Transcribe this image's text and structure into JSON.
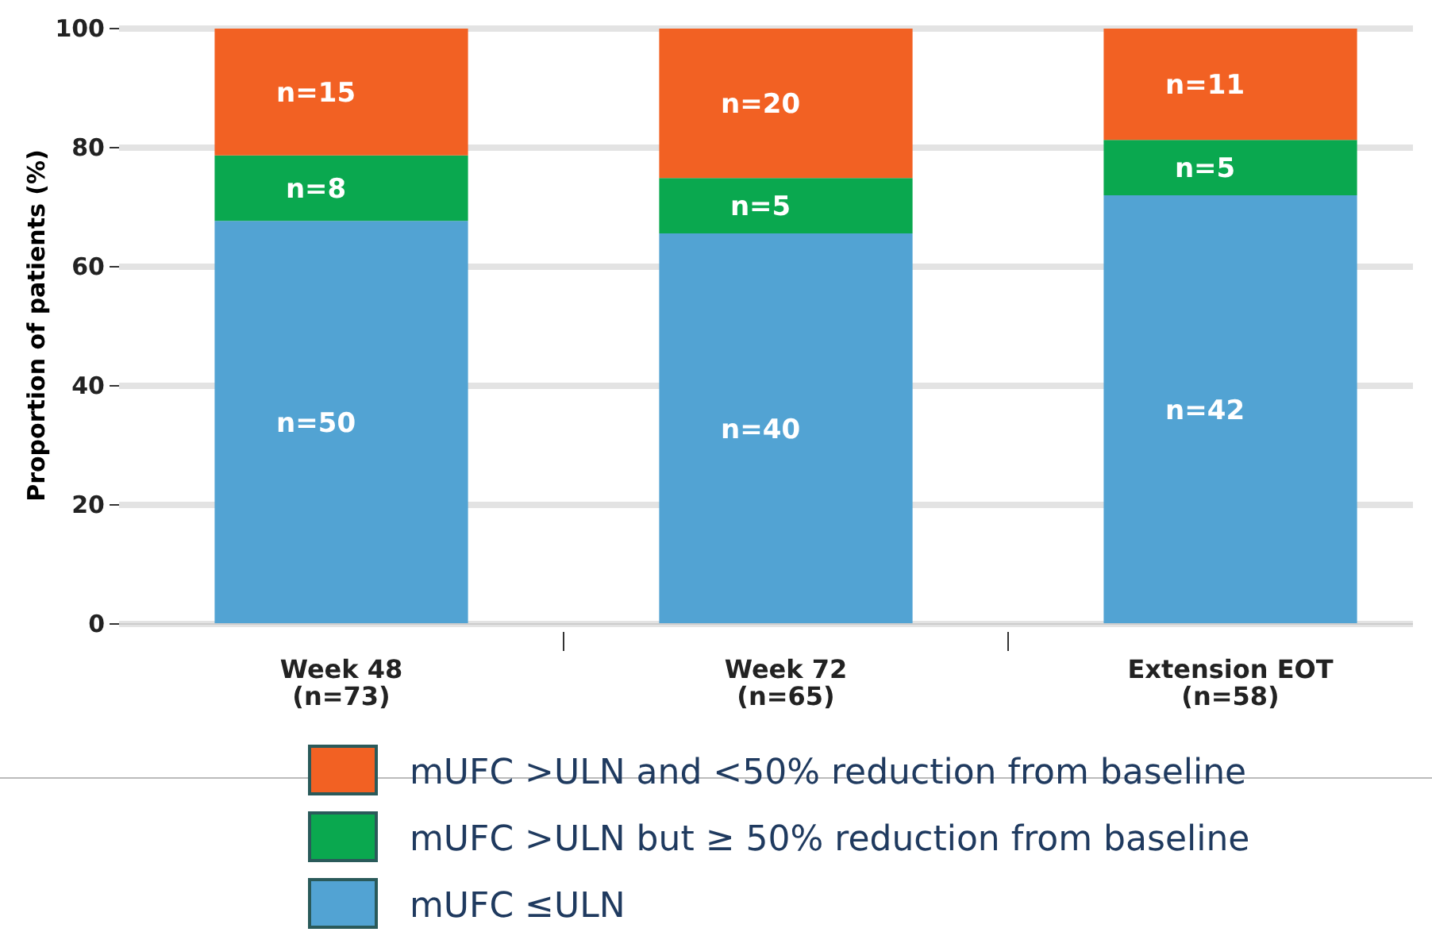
{
  "chart_data": {
    "type": "bar",
    "stacked": true,
    "ylabel": "Proportion of patients (%)",
    "categories": [
      "Week 48\n(n=73)",
      "Week 72\n(n=65)",
      "Extension EOT\n(n=58)"
    ],
    "series": [
      {
        "name": "mUFC ≤ULN",
        "color": "#52a3d3",
        "values": [
          67.7,
          65.6,
          72
        ]
      },
      {
        "name": "mUFC >ULN but ≥ 50% reduction from baseline",
        "color": "#0aa84f",
        "values": [
          11,
          9.3,
          9.3
        ]
      },
      {
        "name": "mUFC >ULN and <50% reduction from baseline",
        "color": "#f26123",
        "values": [
          21.3,
          25.1,
          18.7
        ]
      }
    ],
    "annotations": [
      "n=50",
      "n=8",
      "n=15",
      "n=40",
      "n=5",
      "n=20",
      "n=42",
      "n=5",
      "n=11"
    ],
    "ylim": [
      0,
      100
    ],
    "yticks": [
      0,
      20,
      40,
      60,
      80,
      100
    ],
    "grid": "y",
    "legend": "bottom"
  }
}
